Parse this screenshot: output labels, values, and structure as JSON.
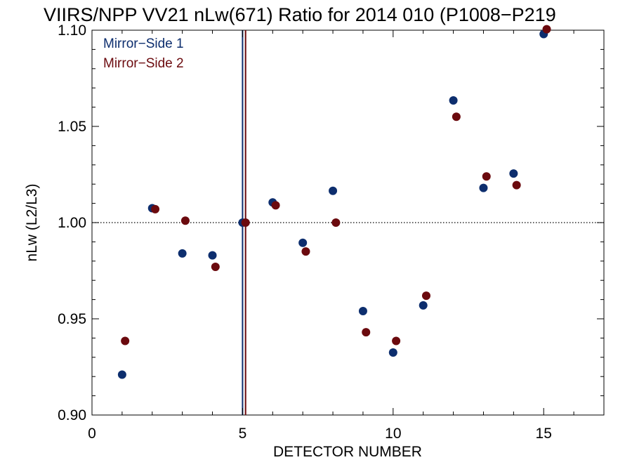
{
  "chart_data": {
    "type": "scatter",
    "title": "VIIRS/NPP VV21 nLw(671) Ratio for 2014 010 (P1008−P219",
    "xlabel": "DETECTOR NUMBER",
    "ylabel": "nLw (L2/L3)",
    "xlim": [
      0,
      17
    ],
    "ylim": [
      0.9,
      1.1
    ],
    "xticks": [
      0,
      5,
      10,
      15
    ],
    "xtick_labels": [
      "0",
      "5",
      "10",
      "15"
    ],
    "yticks": [
      0.9,
      0.95,
      1.0,
      1.05,
      1.1
    ],
    "ytick_labels": [
      "0.90",
      "0.95",
      "1.00",
      "1.05",
      "1.10"
    ],
    "reference_line": {
      "y": 1.0,
      "style": "dotted"
    },
    "legend_placement": "top-left",
    "series": [
      {
        "name": "Mirror−Side 1",
        "color": "#0d2e6e",
        "x": [
          1,
          2,
          3,
          4,
          5,
          6,
          7,
          8,
          9,
          10,
          11,
          12,
          13,
          14,
          15
        ],
        "y": [
          0.921,
          1.0075,
          0.984,
          0.983,
          1.0,
          1.0105,
          0.9895,
          1.0165,
          0.954,
          0.9325,
          0.957,
          1.0635,
          1.018,
          1.0255,
          1.098
        ],
        "marker_line_x": 5
      },
      {
        "name": "Mirror−Side 2",
        "color": "#6b0a0e",
        "x": [
          1.1,
          2.1,
          3.1,
          4.1,
          5.1,
          6.1,
          7.1,
          8.1,
          9.1,
          10.1,
          11.1,
          12.1,
          13.1,
          14.1,
          15.1
        ],
        "y": [
          0.9385,
          1.007,
          1.001,
          0.977,
          1.0,
          1.009,
          0.985,
          1.0,
          0.943,
          0.9385,
          0.962,
          1.055,
          1.024,
          1.0195,
          1.1005
        ],
        "marker_line_x": 5.1
      }
    ]
  }
}
